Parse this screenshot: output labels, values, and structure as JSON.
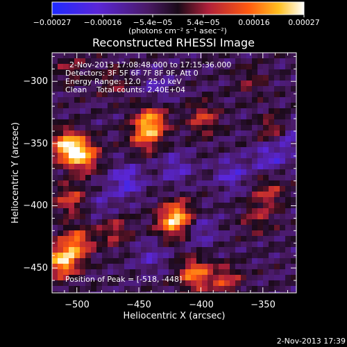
{
  "chart_data": {
    "type": "heatmap",
    "title": "Reconstructed RHESSI Image",
    "xlabel": "Heliocentric X (arcsec)",
    "ylabel": "Heliocentric Y (arcsec)",
    "xlim": [
      -520,
      -323
    ],
    "ylim": [
      -470,
      -277
    ],
    "xticks": [
      -500,
      -450,
      -400,
      -350
    ],
    "yticks": [
      -300,
      -350,
      -400,
      -450
    ],
    "xtick_labels": [
      "−500",
      "−450",
      "−400",
      "−350"
    ],
    "ytick_labels": [
      "−300",
      "−350",
      "−400",
      "−450"
    ],
    "colorbar": {
      "min": -0.00027,
      "max": 0.00027,
      "tick_labels": [
        "−0.00027",
        "−0.00016",
        "−5.4e−05",
        "5.4e−05",
        "0.00016",
        "0.00027"
      ],
      "unit_label": "(photons cm⁻² s⁻¹ asec⁻²)",
      "colors": [
        "#1f2aff",
        "#5a26d8",
        "#4a1a66",
        "#2a0f2a",
        "#b0203a",
        "#ff5a10",
        "#ffc020",
        "#ffffff"
      ]
    },
    "annotations": [
      "2-Nov-2013 17:08:48.000 to 17:15:36.000",
      "Detectors: 3F 5F 6F 7F 8F 9F, Att 0",
      "Energy Range: 12.0 - 25.0 keV",
      "Clean    Total counts: 2.40E+04"
    ],
    "peak_label": "Position of Peak = [-518, -448]",
    "hotspots": [
      {
        "x": -508,
        "y": -352,
        "value": 0.00027
      },
      {
        "x": -495,
        "y": -360,
        "value": 0.00024
      },
      {
        "x": -512,
        "y": -445,
        "value": 0.00027
      },
      {
        "x": -500,
        "y": -430,
        "value": 0.0002
      },
      {
        "x": -505,
        "y": -395,
        "value": 0.00015
      },
      {
        "x": -440,
        "y": -332,
        "value": 0.00022
      },
      {
        "x": -445,
        "y": -345,
        "value": 0.00016
      },
      {
        "x": -418,
        "y": -408,
        "value": 0.0002
      },
      {
        "x": -425,
        "y": -415,
        "value": 0.00014
      },
      {
        "x": -398,
        "y": -330,
        "value": 0.00014
      },
      {
        "x": -470,
        "y": -420,
        "value": 0.00012
      },
      {
        "x": -405,
        "y": -455,
        "value": 0.00022
      },
      {
        "x": -380,
        "y": -460,
        "value": 0.00014
      },
      {
        "x": -340,
        "y": -340,
        "value": 0.00015
      },
      {
        "x": -345,
        "y": -390,
        "value": 0.00012
      },
      {
        "x": -355,
        "y": -410,
        "value": 9e-05
      },
      {
        "x": -470,
        "y": -300,
        "value": 8e-05
      },
      {
        "x": -505,
        "y": -290,
        "value": 8e-05
      },
      {
        "x": -360,
        "y": -300,
        "value": 7e-05
      }
    ],
    "coldspots": [
      {
        "x": -460,
        "y": -380,
        "value": -0.00014
      },
      {
        "x": -420,
        "y": -370,
        "value": -0.0001
      },
      {
        "x": -375,
        "y": -375,
        "value": -0.00011
      },
      {
        "x": -345,
        "y": -360,
        "value": -0.00012
      },
      {
        "x": -330,
        "y": -345,
        "value": -0.00013
      },
      {
        "x": -435,
        "y": -305,
        "value": -8e-05
      },
      {
        "x": -400,
        "y": -420,
        "value": -9e-05
      },
      {
        "x": -480,
        "y": -400,
        "value": -7e-05
      },
      {
        "x": -440,
        "y": -440,
        "value": -8e-05
      }
    ]
  },
  "footer": {
    "timestamp": "2-Nov-2013 17:39"
  }
}
